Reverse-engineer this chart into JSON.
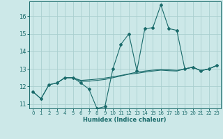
{
  "xlabel": "Humidex (Indice chaleur)",
  "bg_color": "#cce8e8",
  "grid_color": "#aacfcf",
  "line_color": "#1a6b6b",
  "xlim": [
    -0.5,
    23.5
  ],
  "ylim": [
    10.75,
    16.85
  ],
  "yticks": [
    11,
    12,
    13,
    14,
    15,
    16
  ],
  "xticks": [
    0,
    1,
    2,
    3,
    4,
    5,
    6,
    7,
    8,
    9,
    10,
    11,
    12,
    13,
    14,
    15,
    16,
    17,
    18,
    19,
    20,
    21,
    22,
    23
  ],
  "series1_x": [
    0,
    1,
    2,
    3,
    4,
    5,
    6,
    7,
    8,
    9,
    10,
    11,
    12,
    13,
    14,
    15,
    16,
    17,
    18,
    19,
    20,
    21,
    22,
    23
  ],
  "series1_y": [
    11.7,
    11.3,
    12.1,
    12.2,
    12.5,
    12.5,
    12.2,
    11.85,
    10.75,
    10.85,
    13.0,
    14.4,
    15.0,
    12.9,
    15.3,
    15.35,
    16.65,
    15.3,
    15.2,
    13.0,
    13.1,
    12.9,
    13.0,
    13.2
  ],
  "series2_x": [
    0,
    1,
    2,
    3,
    4,
    5,
    6,
    7,
    8,
    9,
    10,
    11,
    12,
    13,
    14,
    15,
    16,
    17,
    18,
    19,
    20,
    21,
    22,
    23
  ],
  "series2_y": [
    11.7,
    11.3,
    12.1,
    12.2,
    12.5,
    12.5,
    12.3,
    12.3,
    12.35,
    12.4,
    12.5,
    12.6,
    12.7,
    12.75,
    12.82,
    12.88,
    12.93,
    12.9,
    12.88,
    13.0,
    13.1,
    12.9,
    13.0,
    13.2
  ],
  "series3_x": [
    3,
    4,
    5,
    6,
    7,
    8,
    9,
    10,
    11,
    12,
    13,
    14,
    15,
    16,
    17,
    18,
    19,
    20,
    21,
    22,
    23
  ],
  "series3_y": [
    12.2,
    12.5,
    12.5,
    12.35,
    12.38,
    12.42,
    12.48,
    12.55,
    12.63,
    12.72,
    12.82,
    12.88,
    12.93,
    12.97,
    12.95,
    12.92,
    13.0,
    13.1,
    12.9,
    13.0,
    13.2
  ]
}
